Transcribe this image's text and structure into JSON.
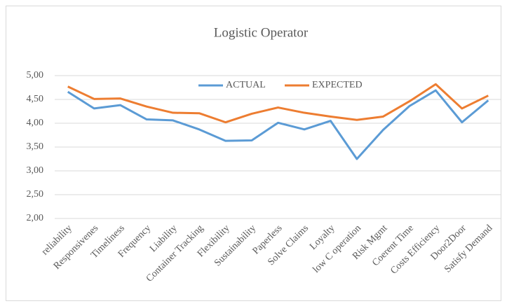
{
  "chart_data": {
    "type": "line",
    "title": "Logistic Operator",
    "categories": [
      "reliability",
      "Responsivenes",
      "Timeliness",
      "Frequency",
      "Liability",
      "Container Tracking",
      "Flexibility",
      "Sustainability",
      "Paperless",
      "Solve Claims",
      "Loyalty",
      "low C operation",
      "Risk Mgmt",
      "Coerent Time",
      "Costs Efficiency",
      "Door2Door",
      "Satisfy Demand"
    ],
    "series": [
      {
        "name": "ACTUAL",
        "color": "#5b9bd5",
        "values": [
          4.66,
          4.31,
          4.38,
          4.08,
          4.06,
          3.87,
          3.63,
          3.64,
          4.01,
          3.87,
          4.05,
          3.25,
          3.86,
          4.36,
          4.69,
          4.02,
          4.48
        ]
      },
      {
        "name": "EXPECTED",
        "color": "#ed7d31",
        "values": [
          4.77,
          4.51,
          4.52,
          4.35,
          4.22,
          4.21,
          4.02,
          4.2,
          4.33,
          4.22,
          4.14,
          4.07,
          4.14,
          4.46,
          4.82,
          4.31,
          4.58
        ]
      }
    ],
    "ylim": [
      2,
      5
    ],
    "yticks": [
      {
        "value": 2,
        "label": "2,00"
      },
      {
        "value": 2.5,
        "label": "2,50"
      },
      {
        "value": 3,
        "label": "3,00"
      },
      {
        "value": 3.5,
        "label": "3,50"
      },
      {
        "value": 4,
        "label": "4,00"
      },
      {
        "value": 4.5,
        "label": "4,50"
      },
      {
        "value": 5,
        "label": "5,00"
      }
    ],
    "grid": true,
    "legend": "top"
  }
}
